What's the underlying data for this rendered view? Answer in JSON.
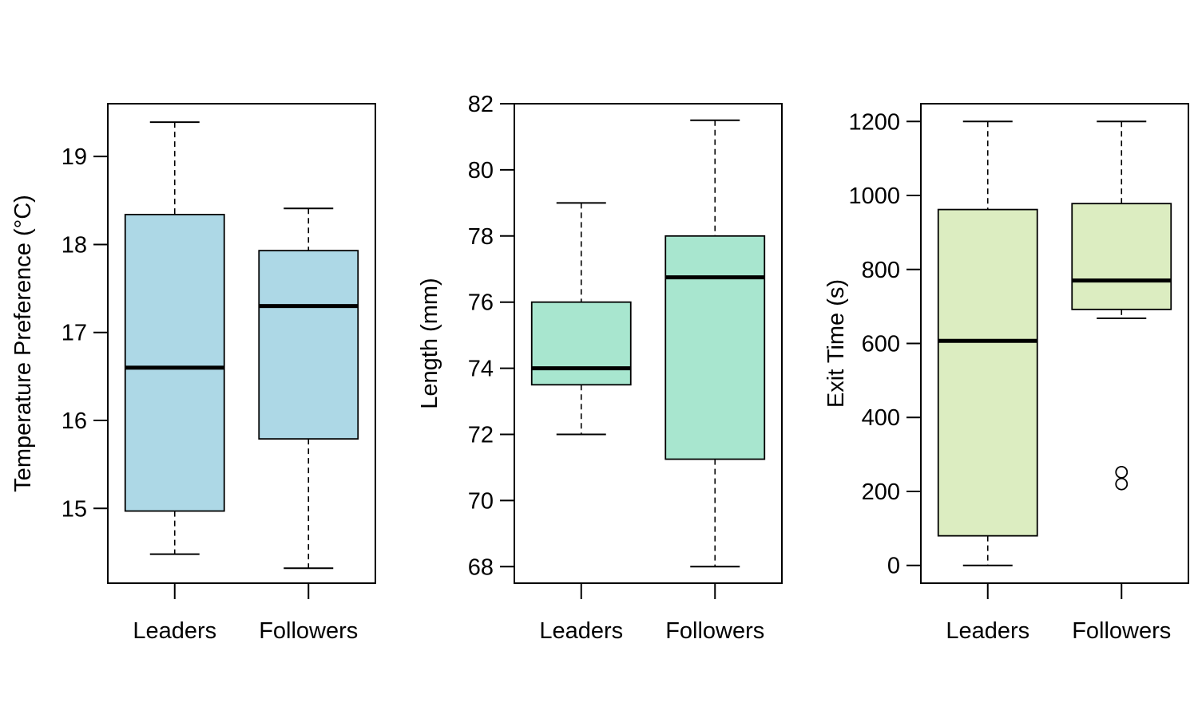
{
  "chart_data": [
    {
      "type": "box",
      "ylabel": "Temperature Preference (°C)",
      "categories": [
        "Leaders",
        "Followers"
      ],
      "fill": "#add8e6",
      "ylim": [
        14.15,
        19.6
      ],
      "yticks": [
        15,
        16,
        17,
        18,
        19
      ],
      "boxes": [
        {
          "category": "Leaders",
          "whisker_low": 14.48,
          "q1": 14.97,
          "median": 16.6,
          "q3": 18.34,
          "whisker_high": 19.39,
          "outliers": []
        },
        {
          "category": "Followers",
          "whisker_low": 14.32,
          "q1": 15.79,
          "median": 17.3,
          "q3": 17.93,
          "whisker_high": 18.41,
          "outliers": []
        }
      ]
    },
    {
      "type": "box",
      "ylabel": "Length (mm)",
      "categories": [
        "Leaders",
        "Followers"
      ],
      "fill": "#a8e6cf",
      "ylim": [
        67.5,
        82.0
      ],
      "yticks": [
        68,
        70,
        72,
        74,
        76,
        78,
        80,
        82
      ],
      "boxes": [
        {
          "category": "Leaders",
          "whisker_low": 72,
          "q1": 73.5,
          "median": 74,
          "q3": 76,
          "whisker_high": 79,
          "outliers": []
        },
        {
          "category": "Followers",
          "whisker_low": 68,
          "q1": 71.25,
          "median": 76.75,
          "q3": 78,
          "whisker_high": 81.5,
          "outliers": []
        }
      ]
    },
    {
      "type": "box",
      "ylabel": "Exit Time (s)",
      "categories": [
        "Leaders",
        "Followers"
      ],
      "fill": "#dcedc1",
      "ylim": [
        -48,
        1248
      ],
      "yticks": [
        0,
        200,
        400,
        600,
        800,
        1000,
        1200
      ],
      "boxes": [
        {
          "category": "Leaders",
          "whisker_low": 0,
          "q1": 80,
          "median": 607,
          "q3": 962,
          "whisker_high": 1200,
          "outliers": []
        },
        {
          "category": "Followers",
          "whisker_low": 668,
          "q1": 692,
          "median": 770,
          "q3": 978,
          "whisker_high": 1200,
          "outliers": [
            252,
            220
          ]
        }
      ]
    }
  ]
}
